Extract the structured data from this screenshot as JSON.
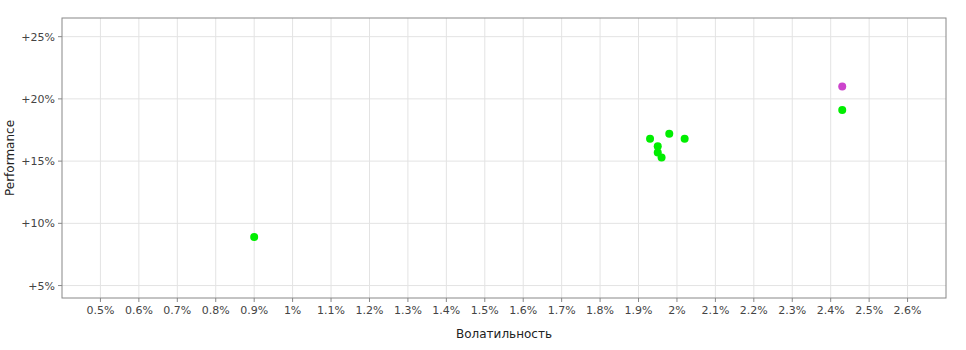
{
  "chart_data": {
    "type": "scatter",
    "xlabel": "Волатильность",
    "ylabel": "Performance",
    "grid": true,
    "xlim": [
      0.004,
      0.027
    ],
    "ylim": [
      0.04,
      0.265
    ],
    "xticks": [
      {
        "value": 0.005,
        "label": "0.5%"
      },
      {
        "value": 0.006,
        "label": "0.6%"
      },
      {
        "value": 0.007,
        "label": "0.7%"
      },
      {
        "value": 0.008,
        "label": "0.8%"
      },
      {
        "value": 0.009,
        "label": "0.9%"
      },
      {
        "value": 0.01,
        "label": "1%"
      },
      {
        "value": 0.011,
        "label": "1.1%"
      },
      {
        "value": 0.012,
        "label": "1.2%"
      },
      {
        "value": 0.013,
        "label": "1.3%"
      },
      {
        "value": 0.014,
        "label": "1.4%"
      },
      {
        "value": 0.015,
        "label": "1.5%"
      },
      {
        "value": 0.016,
        "label": "1.6%"
      },
      {
        "value": 0.017,
        "label": "1.7%"
      },
      {
        "value": 0.018,
        "label": "1.8%"
      },
      {
        "value": 0.019,
        "label": "1.9%"
      },
      {
        "value": 0.02,
        "label": "2%"
      },
      {
        "value": 0.021,
        "label": "2.1%"
      },
      {
        "value": 0.022,
        "label": "2.2%"
      },
      {
        "value": 0.023,
        "label": "2.3%"
      },
      {
        "value": 0.024,
        "label": "2.4%"
      },
      {
        "value": 0.025,
        "label": "2.5%"
      },
      {
        "value": 0.026,
        "label": "2.6%"
      }
    ],
    "yticks": [
      {
        "value": 0.05,
        "label": "+5%"
      },
      {
        "value": 0.1,
        "label": "+10%"
      },
      {
        "value": 0.15,
        "label": "+15%"
      },
      {
        "value": 0.2,
        "label": "+20%"
      },
      {
        "value": 0.25,
        "label": "+25%"
      }
    ],
    "series": [
      {
        "color": "#00ee00",
        "x": [
          0.009,
          0.0193,
          0.0195,
          0.0195,
          0.0196,
          0.0198,
          0.0202,
          0.0243
        ],
        "values": [
          0.089,
          0.168,
          0.162,
          0.157,
          0.153,
          0.172,
          0.168,
          0.191
        ]
      },
      {
        "color": "#cc44cc",
        "x": [
          0.0243
        ],
        "values": [
          0.21
        ]
      }
    ]
  }
}
